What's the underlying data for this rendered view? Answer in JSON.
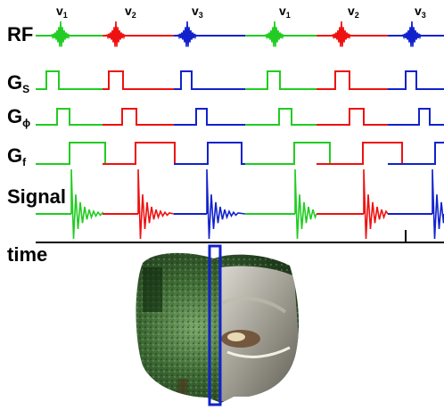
{
  "rows": {
    "rf": {
      "label": "RF"
    },
    "gs": {
      "label": "G",
      "sub": "S"
    },
    "gphi": {
      "label": "G",
      "sub": "ϕ"
    },
    "gf": {
      "label": "G",
      "sub": "f"
    },
    "signal": {
      "label": "Signal"
    }
  },
  "time_label": "time",
  "pulses": [
    {
      "label": "v",
      "sub": "1"
    },
    {
      "label": "v",
      "sub": "2"
    },
    {
      "label": "v",
      "sub": "3"
    },
    {
      "label": "v",
      "sub": "1"
    },
    {
      "label": "v",
      "sub": "2"
    },
    {
      "label": "v",
      "sub": "3"
    }
  ],
  "colors": {
    "v1": "#22cc22",
    "v2": "#ee1111",
    "v3": "#1122cc",
    "axis": "#000000",
    "slice_box": "#1122cc"
  },
  "image": {
    "description_icon": "brain-slice-image"
  }
}
